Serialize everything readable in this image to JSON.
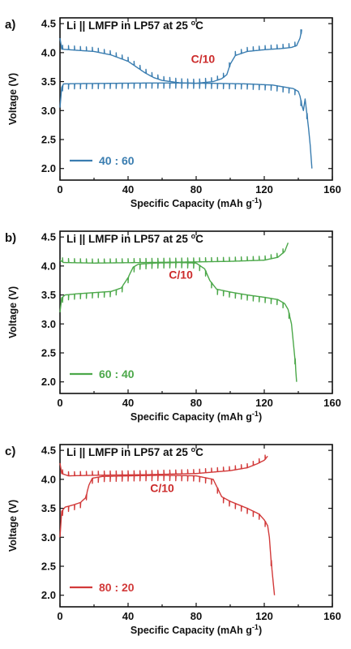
{
  "chart_data": [
    {
      "type": "line",
      "panel_label": "a)",
      "title": "Li || LMFP in LP57 at 25",
      "title_unit": "oC",
      "annotation": "C/10",
      "annotation_color": "#cc2b2b",
      "xlabel": "Specific Capacity (mAh g",
      "xlabel_sup": "-1",
      "xlabel_close": ")",
      "ylabel": "Voltage (V)",
      "xlim": [
        0,
        160
      ],
      "ylim": [
        1.8,
        4.6
      ],
      "xticks": [
        "0",
        "40",
        "80",
        "120",
        "160"
      ],
      "yticks": [
        "2.0",
        "2.5",
        "3.0",
        "3.5",
        "4.0",
        "4.5"
      ],
      "legend_position": "bottom-left",
      "series": [
        {
          "name": "40 : 60",
          "color": "#3a7db0",
          "charge": [
            [
              0,
              3.05
            ],
            [
              1,
              3.4
            ],
            [
              2,
              3.46
            ],
            [
              10,
              3.465
            ],
            [
              30,
              3.47
            ],
            [
              50,
              3.475
            ],
            [
              70,
              3.475
            ],
            [
              90,
              3.47
            ],
            [
              110,
              3.46
            ],
            [
              125,
              3.44
            ],
            [
              133,
              3.4
            ],
            [
              137,
              3.38
            ],
            [
              140,
              3.33
            ],
            [
              141,
              3.25
            ],
            [
              142,
              3.1
            ],
            [
              143,
              3.0
            ],
            [
              144,
              3.2
            ],
            [
              145,
              2.95
            ],
            [
              146,
              2.7
            ],
            [
              147,
              2.4
            ],
            [
              148,
              2.0
            ]
          ],
          "discharge": [
            [
              0,
              4.25
            ],
            [
              1,
              4.06
            ],
            [
              10,
              4.04
            ],
            [
              20,
              4.02
            ],
            [
              30,
              3.96
            ],
            [
              40,
              3.85
            ],
            [
              45,
              3.75
            ],
            [
              50,
              3.65
            ],
            [
              55,
              3.57
            ],
            [
              60,
              3.52
            ],
            [
              70,
              3.48
            ],
            [
              80,
              3.47
            ],
            [
              90,
              3.5
            ],
            [
              95,
              3.55
            ],
            [
              98,
              3.62
            ],
            [
              100,
              3.8
            ],
            [
              103,
              3.95
            ],
            [
              110,
              4.02
            ],
            [
              120,
              4.05
            ],
            [
              130,
              4.07
            ],
            [
              136,
              4.09
            ],
            [
              139,
              4.12
            ],
            [
              141,
              4.25
            ],
            [
              142,
              4.4
            ]
          ]
        }
      ]
    },
    {
      "type": "line",
      "panel_label": "b)",
      "title": "Li || LMFP in LP57 at 25",
      "title_unit": "oC",
      "annotation": "C/10",
      "annotation_color": "#cc2b2b",
      "xlabel": "Specific Capacity (mAh g",
      "xlabel_sup": "-1",
      "xlabel_close": ")",
      "ylabel": "Voltage (V)",
      "xlim": [
        0,
        160
      ],
      "ylim": [
        1.8,
        4.6
      ],
      "xticks": [
        "0",
        "40",
        "80",
        "120",
        "160"
      ],
      "yticks": [
        "2.0",
        "2.5",
        "3.0",
        "3.5",
        "4.0",
        "4.5"
      ],
      "legend_position": "bottom-left",
      "series": [
        {
          "name": "60 : 40",
          "color": "#4ca84a",
          "charge": [
            [
              0,
              3.2
            ],
            [
              1,
              3.45
            ],
            [
              3,
              3.5
            ],
            [
              10,
              3.52
            ],
            [
              20,
              3.54
            ],
            [
              30,
              3.56
            ],
            [
              36,
              3.62
            ],
            [
              40,
              3.8
            ],
            [
              43,
              3.98
            ],
            [
              46,
              4.03
            ],
            [
              55,
              4.05
            ],
            [
              70,
              4.06
            ],
            [
              80,
              4.05
            ],
            [
              85,
              3.95
            ],
            [
              88,
              3.75
            ],
            [
              92,
              3.6
            ],
            [
              100,
              3.55
            ],
            [
              110,
              3.5
            ],
            [
              120,
              3.46
            ],
            [
              128,
              3.42
            ],
            [
              132,
              3.35
            ],
            [
              134,
              3.25
            ],
            [
              136,
              3.0
            ],
            [
              137,
              2.7
            ],
            [
              138,
              2.4
            ],
            [
              139,
              2.0
            ]
          ],
          "discharge": [
            [
              0,
              4.1
            ],
            [
              2,
              4.06
            ],
            [
              20,
              4.05
            ],
            [
              50,
              4.06
            ],
            [
              80,
              4.07
            ],
            [
              100,
              4.08
            ],
            [
              120,
              4.1
            ],
            [
              128,
              4.15
            ],
            [
              132,
              4.25
            ],
            [
              134,
              4.4
            ]
          ]
        }
      ]
    },
    {
      "type": "line",
      "panel_label": "c)",
      "title": "Li || LMFP in LP57 at 25",
      "title_unit": "oC",
      "annotation": "C/10",
      "annotation_color": "#cc2b2b",
      "xlabel": "Specific Capacity (mAh g",
      "xlabel_sup": "-1",
      "xlabel_close": ")",
      "ylabel": "Voltage (V)",
      "xlim": [
        0,
        160
      ],
      "ylim": [
        1.8,
        4.6
      ],
      "xticks": [
        "0",
        "40",
        "80",
        "120",
        "160"
      ],
      "yticks": [
        "2.0",
        "2.5",
        "3.0",
        "3.5",
        "4.0",
        "4.5"
      ],
      "legend_position": "bottom-left",
      "series": [
        {
          "name": "80 : 20",
          "color": "#d23a3a",
          "charge": [
            [
              0,
              3.0
            ],
            [
              1,
              3.45
            ],
            [
              3,
              3.52
            ],
            [
              8,
              3.56
            ],
            [
              12,
              3.6
            ],
            [
              15,
              3.68
            ],
            [
              17,
              3.9
            ],
            [
              19,
              4.02
            ],
            [
              25,
              4.05
            ],
            [
              40,
              4.06
            ],
            [
              60,
              4.07
            ],
            [
              80,
              4.06
            ],
            [
              90,
              4.0
            ],
            [
              95,
              3.7
            ],
            [
              100,
              3.62
            ],
            [
              110,
              3.5
            ],
            [
              117,
              3.4
            ],
            [
              120,
              3.3
            ],
            [
              122,
              3.2
            ],
            [
              123,
              3.0
            ],
            [
              124,
              2.6
            ],
            [
              125,
              2.3
            ],
            [
              126,
              2.0
            ]
          ],
          "discharge": [
            [
              0,
              4.28
            ],
            [
              1,
              4.1
            ],
            [
              5,
              4.06
            ],
            [
              20,
              4.07
            ],
            [
              50,
              4.08
            ],
            [
              80,
              4.1
            ],
            [
              100,
              4.15
            ],
            [
              110,
              4.2
            ],
            [
              116,
              4.27
            ],
            [
              120,
              4.33
            ],
            [
              122,
              4.4
            ]
          ]
        }
      ]
    }
  ]
}
